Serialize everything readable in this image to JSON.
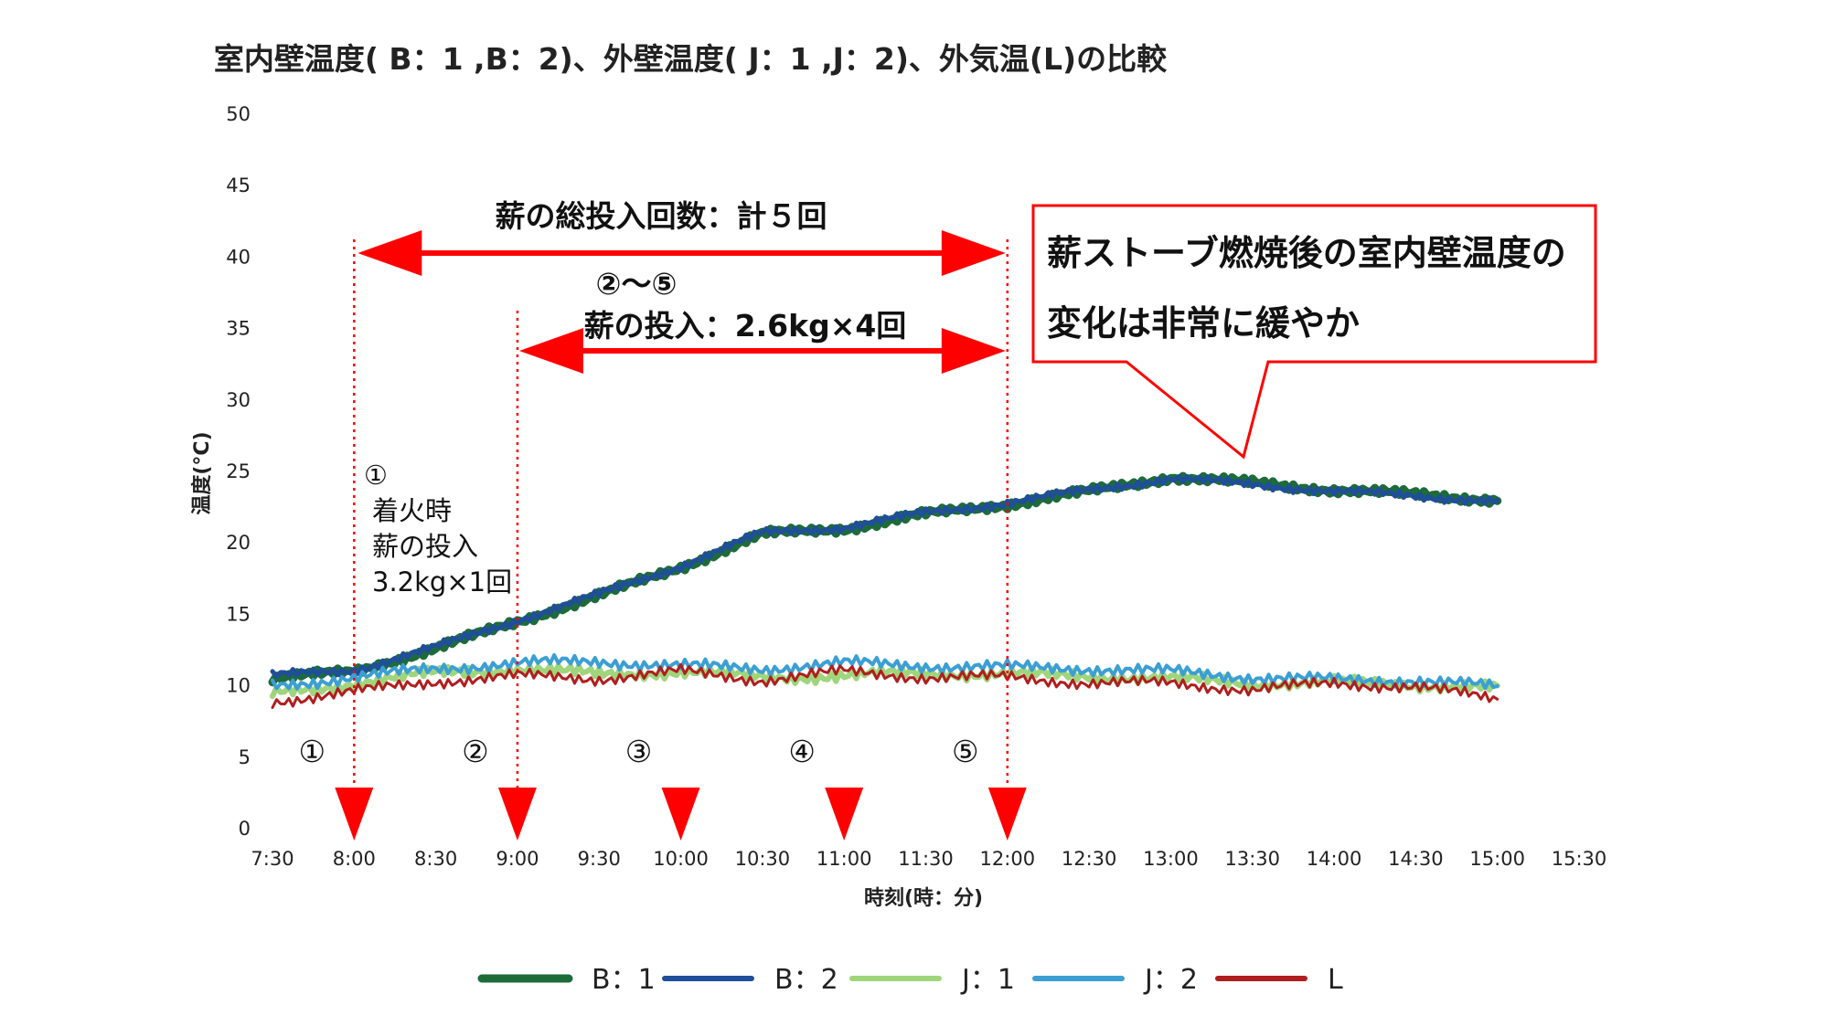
{
  "chart_data": {
    "type": "line",
    "title": "室内壁温度( B：1 ,B：2)、外壁温度( J：1 ,J：2)、外気温(L)の比較",
    "xlabel": "時刻(時：分)",
    "ylabel": "温度(°C)",
    "ylim": [
      0,
      50
    ],
    "yticks": [
      0,
      5,
      10,
      15,
      20,
      25,
      30,
      35,
      40,
      45,
      50
    ],
    "xlim": [
      "7:30",
      "15:30"
    ],
    "xticks": [
      "7:30",
      "8:00",
      "8:30",
      "9:00",
      "9:30",
      "10:00",
      "10:30",
      "11:00",
      "11:30",
      "12:00",
      "12:30",
      "13:00",
      "13:30",
      "14:00",
      "14:30",
      "15:00",
      "15:30"
    ],
    "grid": false,
    "legend_position": "bottom",
    "x": [
      "7:30",
      "8:00",
      "8:30",
      "9:00",
      "9:30",
      "10:00",
      "10:30",
      "11:00",
      "11:30",
      "12:00",
      "12:30",
      "13:00",
      "13:30",
      "14:00",
      "14:30",
      "15:00"
    ],
    "series": [
      {
        "name": "B：1",
        "color": "#1e6b3a",
        "width": 9,
        "values": [
          10.5,
          11.0,
          12.6,
          14.5,
          16.3,
          18.3,
          20.6,
          21.0,
          22.0,
          22.7,
          23.6,
          24.6,
          24.2,
          23.7,
          23.4,
          23.0
        ]
      },
      {
        "name": "B：2",
        "color": "#1f4e9a",
        "width": 5,
        "values": [
          10.7,
          11.1,
          12.7,
          14.6,
          16.4,
          18.4,
          20.7,
          21.1,
          22.1,
          22.8,
          23.7,
          24.5,
          24.1,
          23.6,
          23.3,
          22.9
        ]
      },
      {
        "name": "J：1",
        "color": "#9fd67c",
        "width": 6,
        "values": [
          9.4,
          10.2,
          10.9,
          11.2,
          10.8,
          11.0,
          10.6,
          10.7,
          10.9,
          10.8,
          10.7,
          10.5,
          10.2,
          10.2,
          10.1,
          9.8
        ]
      },
      {
        "name": "J：2",
        "color": "#3c9fd4",
        "width": 4,
        "values": [
          10.0,
          10.6,
          11.2,
          11.6,
          11.7,
          11.4,
          11.2,
          11.6,
          11.4,
          11.3,
          11.2,
          11.0,
          10.6,
          10.4,
          10.4,
          9.9
        ]
      },
      {
        "name": "L",
        "color": "#b01e1e",
        "width": 3,
        "values": [
          8.9,
          9.6,
          10.3,
          10.7,
          10.5,
          11.0,
          10.4,
          11.0,
          10.6,
          10.6,
          10.2,
          10.2,
          9.7,
          10.2,
          9.9,
          9.1
        ]
      }
    ],
    "event_markers": [
      {
        "time": "8:00",
        "label": "①"
      },
      {
        "time": "9:00",
        "label": "②"
      },
      {
        "time": "10:00",
        "label": "③"
      },
      {
        "time": "11:00",
        "label": "④"
      },
      {
        "time": "12:00",
        "label": "⑤"
      }
    ],
    "annotations": {
      "total_count": "薪の総投入回数：計５回",
      "range_2_5": "②～⑤",
      "feed_2_5": "薪の投入：2.6kg×4回",
      "first_num": "①",
      "first_line1": "着火時",
      "first_line2": "薪の投入",
      "first_line3": "3.2kg×1回",
      "callout_line1": "薪ストーブ燃焼後の室内壁温度の",
      "callout_line2": "変化は非常に緩やか"
    },
    "annotation_color": "#ff0000"
  }
}
